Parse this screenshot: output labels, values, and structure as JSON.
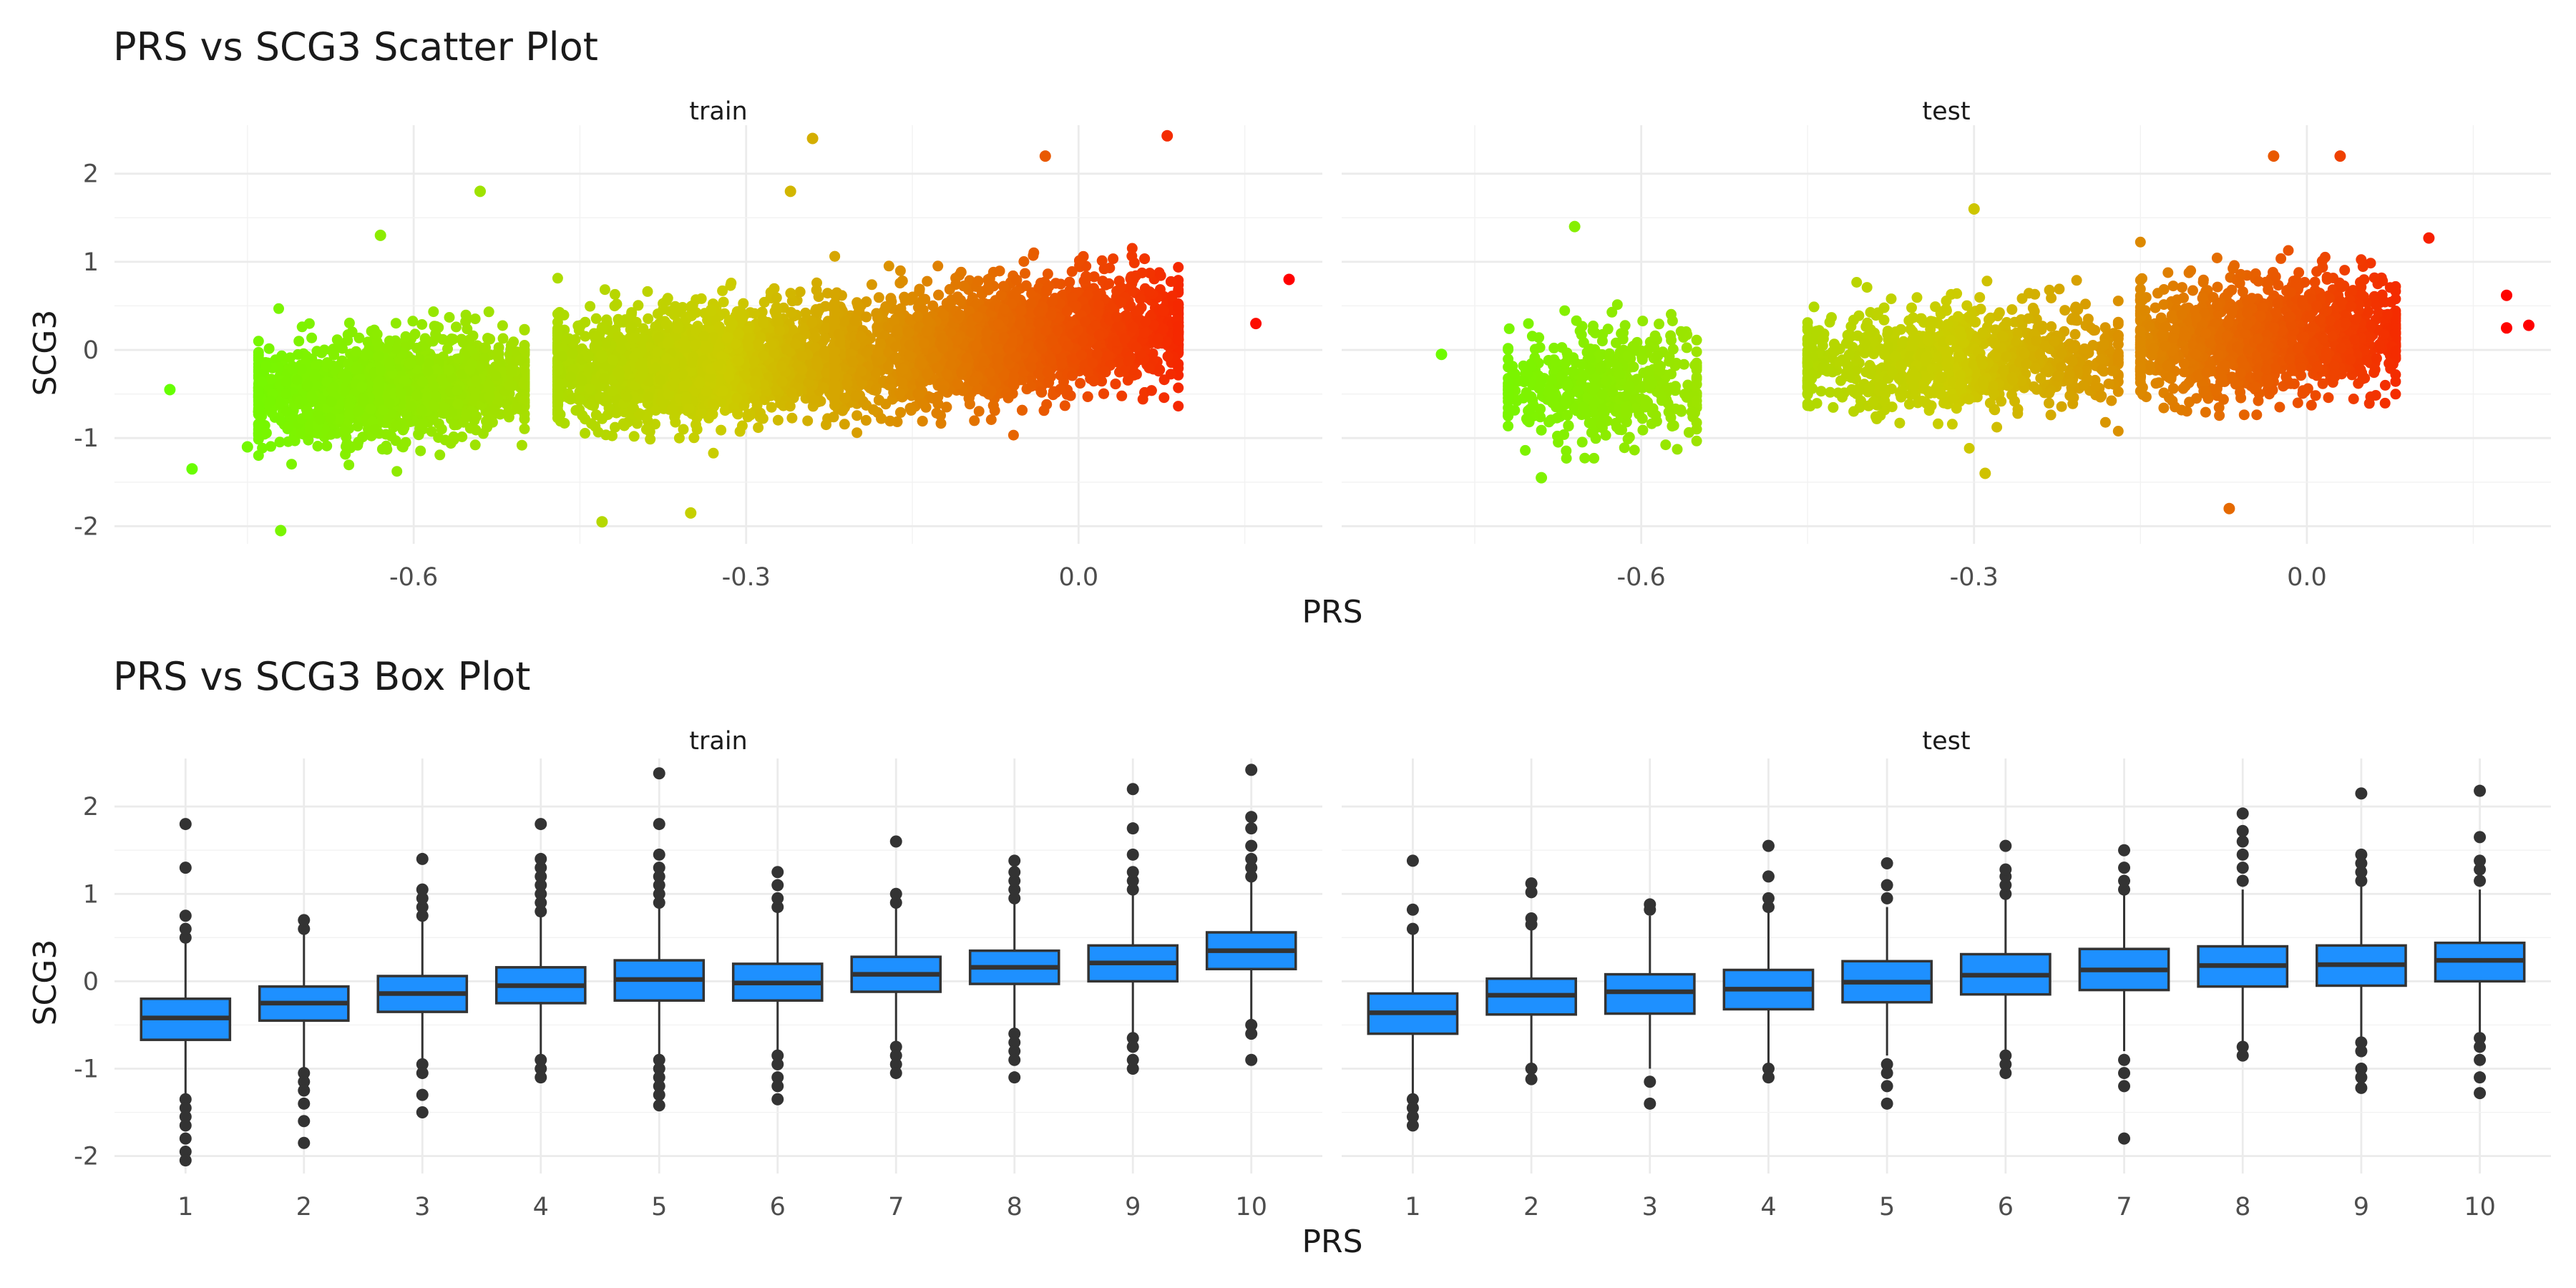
{
  "colors": {
    "scatter_low": "#66ff00",
    "scatter_mid": "#cccc00",
    "scatter_high": "#ff0000",
    "box_fill": "#1e90ff",
    "box_line": "#333333",
    "outlier": "#333333"
  },
  "chart_data": [
    {
      "type": "scatter",
      "title": "PRS vs SCG3 Scatter Plot",
      "xlabel": "PRS",
      "ylabel": "SCG3",
      "xlim": [
        -0.87,
        0.22
      ],
      "ylim": [
        -2.2,
        2.55
      ],
      "x_ticks": [
        -0.6,
        -0.3,
        0.0
      ],
      "x_tick_labels": [
        "-0.6",
        "-0.3",
        "0.0"
      ],
      "y_ticks": [
        -2,
        -1,
        0,
        1,
        2
      ],
      "y_tick_labels": [
        "-2",
        "-1",
        "0",
        "1",
        "2"
      ],
      "grid": true,
      "color_scale": {
        "variable": "PRS",
        "low": "#66ff00",
        "mid": "#cccc00",
        "high": "#ff0000",
        "range": [
          -0.82,
          0.19
        ]
      },
      "facets": [
        {
          "label": "train",
          "clusters": [
            {
              "x_range": [
                -0.74,
                -0.5
              ],
              "x_center": -0.64,
              "y_center": -0.45,
              "y_spread": 0.28,
              "slope": 0.8,
              "count": 1500
            },
            {
              "x_range": [
                -0.47,
                -0.2
              ],
              "x_center": -0.32,
              "y_center": -0.15,
              "y_spread": 0.3,
              "slope": 0.7,
              "count": 2000
            },
            {
              "x_range": [
                -0.22,
                0.09
              ],
              "x_center": -0.03,
              "y_center": 0.15,
              "y_spread": 0.32,
              "slope": 1.2,
              "count": 2800
            }
          ],
          "notable_points": [
            {
              "x": -0.82,
              "y": -0.45
            },
            {
              "x": -0.75,
              "y": -1.1
            },
            {
              "x": -0.8,
              "y": -1.35
            },
            {
              "x": -0.72,
              "y": -2.05
            },
            {
              "x": -0.54,
              "y": 1.8
            },
            {
              "x": -0.63,
              "y": 1.3
            },
            {
              "x": -0.24,
              "y": 2.4
            },
            {
              "x": -0.03,
              "y": 2.2
            },
            {
              "x": 0.08,
              "y": 2.43
            },
            {
              "x": 0.19,
              "y": 0.8
            },
            {
              "x": 0.16,
              "y": 0.3
            },
            {
              "x": -0.43,
              "y": -1.95
            },
            {
              "x": -0.35,
              "y": -1.85
            },
            {
              "x": -0.26,
              "y": 1.8
            }
          ]
        },
        {
          "label": "test",
          "clusters": [
            {
              "x_range": [
                -0.72,
                -0.55
              ],
              "x_center": -0.64,
              "y_center": -0.4,
              "y_spread": 0.3,
              "slope": 0.5,
              "count": 500
            },
            {
              "x_range": [
                -0.45,
                -0.17
              ],
              "x_center": -0.3,
              "y_center": -0.1,
              "y_spread": 0.3,
              "slope": 0.4,
              "count": 900
            },
            {
              "x_range": [
                -0.15,
                0.08
              ],
              "x_center": -0.04,
              "y_center": 0.15,
              "y_spread": 0.32,
              "slope": 0.6,
              "count": 1200
            }
          ],
          "notable_points": [
            {
              "x": -0.78,
              "y": -0.05
            },
            {
              "x": -0.66,
              "y": 1.4
            },
            {
              "x": -0.3,
              "y": 1.6
            },
            {
              "x": -0.03,
              "y": 2.2
            },
            {
              "x": 0.03,
              "y": 2.2
            },
            {
              "x": 0.18,
              "y": 0.62
            },
            {
              "x": 0.18,
              "y": 0.25
            },
            {
              "x": 0.2,
              "y": 0.28
            },
            {
              "x": -0.07,
              "y": -1.8
            },
            {
              "x": -0.29,
              "y": -1.4
            },
            {
              "x": -0.69,
              "y": -1.45
            },
            {
              "x": 0.11,
              "y": 1.27
            }
          ]
        }
      ]
    },
    {
      "type": "box",
      "title": "PRS vs SCG3 Box Plot",
      "xlabel": "PRS",
      "ylabel": "SCG3",
      "categories": [
        "1",
        "2",
        "3",
        "4",
        "5",
        "6",
        "7",
        "8",
        "9",
        "10"
      ],
      "ylim": [
        -2.2,
        2.55
      ],
      "y_ticks": [
        -2,
        -1,
        0,
        1,
        2
      ],
      "y_tick_labels": [
        "-2",
        "-1",
        "0",
        "1",
        "2"
      ],
      "grid": true,
      "facets": [
        {
          "label": "train",
          "boxes": [
            {
              "q1": -0.67,
              "median": -0.42,
              "q3": -0.2,
              "lower": -1.3,
              "upper": 0.45,
              "outliers": [
                -1.35,
                -1.45,
                -1.55,
                -1.65,
                -1.8,
                -1.95,
                -2.05,
                0.5,
                0.6,
                0.75,
                1.3,
                1.8
              ]
            },
            {
              "q1": -0.45,
              "median": -0.25,
              "q3": -0.06,
              "lower": -1.0,
              "upper": 0.55,
              "outliers": [
                -1.05,
                -1.15,
                -1.25,
                -1.4,
                -1.6,
                -1.85,
                0.6,
                0.7
              ]
            },
            {
              "q1": -0.35,
              "median": -0.14,
              "q3": 0.06,
              "lower": -0.9,
              "upper": 0.7,
              "outliers": [
                -0.95,
                -1.05,
                -1.3,
                -1.5,
                0.75,
                0.85,
                0.95,
                1.05,
                1.4
              ]
            },
            {
              "q1": -0.25,
              "median": -0.05,
              "q3": 0.16,
              "lower": -0.85,
              "upper": 0.75,
              "outliers": [
                -0.9,
                -1.0,
                -1.1,
                0.8,
                0.9,
                1.0,
                1.1,
                1.2,
                1.3,
                1.4,
                1.8
              ]
            },
            {
              "q1": -0.22,
              "median": 0.02,
              "q3": 0.24,
              "lower": -0.85,
              "upper": 0.85,
              "outliers": [
                -0.9,
                -1.0,
                -1.1,
                -1.2,
                -1.3,
                -1.42,
                0.9,
                1.0,
                1.1,
                1.2,
                1.3,
                1.45,
                1.8,
                2.38
              ]
            },
            {
              "q1": -0.22,
              "median": -0.02,
              "q3": 0.2,
              "lower": -0.8,
              "upper": 0.8,
              "outliers": [
                -0.85,
                -0.95,
                -1.1,
                -1.2,
                -1.35,
                0.85,
                0.95,
                1.1,
                1.25
              ]
            },
            {
              "q1": -0.12,
              "median": 0.08,
              "q3": 0.28,
              "lower": -0.7,
              "upper": 0.85,
              "outliers": [
                -0.75,
                -0.85,
                -0.95,
                -1.05,
                0.9,
                1.0,
                1.6
              ]
            },
            {
              "q1": -0.03,
              "median": 0.16,
              "q3": 0.35,
              "lower": -0.55,
              "upper": 0.9,
              "outliers": [
                -0.6,
                -0.7,
                -0.8,
                -0.9,
                -1.1,
                0.95,
                1.05,
                1.15,
                1.25,
                1.38
              ]
            },
            {
              "q1": 0.0,
              "median": 0.21,
              "q3": 0.41,
              "lower": -0.6,
              "upper": 1.0,
              "outliers": [
                -0.65,
                -0.75,
                -0.9,
                -1.0,
                1.05,
                1.15,
                1.25,
                1.45,
                1.75,
                2.2
              ]
            },
            {
              "q1": 0.14,
              "median": 0.35,
              "q3": 0.56,
              "lower": -0.45,
              "upper": 1.15,
              "outliers": [
                -0.5,
                -0.6,
                -0.9,
                1.2,
                1.3,
                1.4,
                1.55,
                1.75,
                1.88,
                2.42
              ]
            }
          ]
        },
        {
          "label": "test",
          "boxes": [
            {
              "q1": -0.6,
              "median": -0.36,
              "q3": -0.14,
              "lower": -1.3,
              "upper": 0.55,
              "outliers": [
                -1.35,
                -1.45,
                -1.55,
                -1.65,
                0.6,
                0.82,
                1.38
              ]
            },
            {
              "q1": -0.38,
              "median": -0.16,
              "q3": 0.03,
              "lower": -0.95,
              "upper": 0.6,
              "outliers": [
                -1.0,
                -1.12,
                0.65,
                0.72,
                1.02,
                1.12
              ]
            },
            {
              "q1": -0.37,
              "median": -0.12,
              "q3": 0.08,
              "lower": -1.0,
              "upper": 0.75,
              "outliers": [
                -1.15,
                -1.4,
                0.82,
                0.88
              ]
            },
            {
              "q1": -0.32,
              "median": -0.09,
              "q3": 0.13,
              "lower": -0.95,
              "upper": 0.8,
              "outliers": [
                -1.0,
                -1.1,
                0.85,
                0.95,
                1.2,
                1.55
              ]
            },
            {
              "q1": -0.24,
              "median": -0.01,
              "q3": 0.23,
              "lower": -0.85,
              "upper": 0.85,
              "outliers": [
                -0.95,
                -1.05,
                -1.2,
                -1.4,
                0.95,
                1.1,
                1.35
              ]
            },
            {
              "q1": -0.15,
              "median": 0.07,
              "q3": 0.31,
              "lower": -0.8,
              "upper": 0.95,
              "outliers": [
                -0.85,
                -0.95,
                -1.05,
                1.0,
                1.1,
                1.2,
                1.28,
                1.55
              ]
            },
            {
              "q1": -0.1,
              "median": 0.13,
              "q3": 0.37,
              "lower": -0.8,
              "upper": 1.0,
              "outliers": [
                -0.9,
                -1.05,
                -1.2,
                -1.8,
                1.05,
                1.15,
                1.3,
                1.5
              ]
            },
            {
              "q1": -0.06,
              "median": 0.18,
              "q3": 0.4,
              "lower": -0.7,
              "upper": 1.05,
              "outliers": [
                -0.75,
                -0.85,
                1.15,
                1.3,
                1.45,
                1.6,
                1.72,
                1.92
              ]
            },
            {
              "q1": -0.05,
              "median": 0.19,
              "q3": 0.41,
              "lower": -0.65,
              "upper": 1.1,
              "outliers": [
                -0.7,
                -0.8,
                -1.0,
                -1.1,
                -1.22,
                1.15,
                1.25,
                1.35,
                1.45,
                2.15
              ]
            },
            {
              "q1": 0.0,
              "median": 0.24,
              "q3": 0.44,
              "lower": -0.6,
              "upper": 1.05,
              "outliers": [
                -0.65,
                -0.75,
                -0.9,
                -1.1,
                -1.28,
                1.15,
                1.28,
                1.38,
                1.65,
                2.18
              ]
            }
          ]
        }
      ]
    }
  ]
}
